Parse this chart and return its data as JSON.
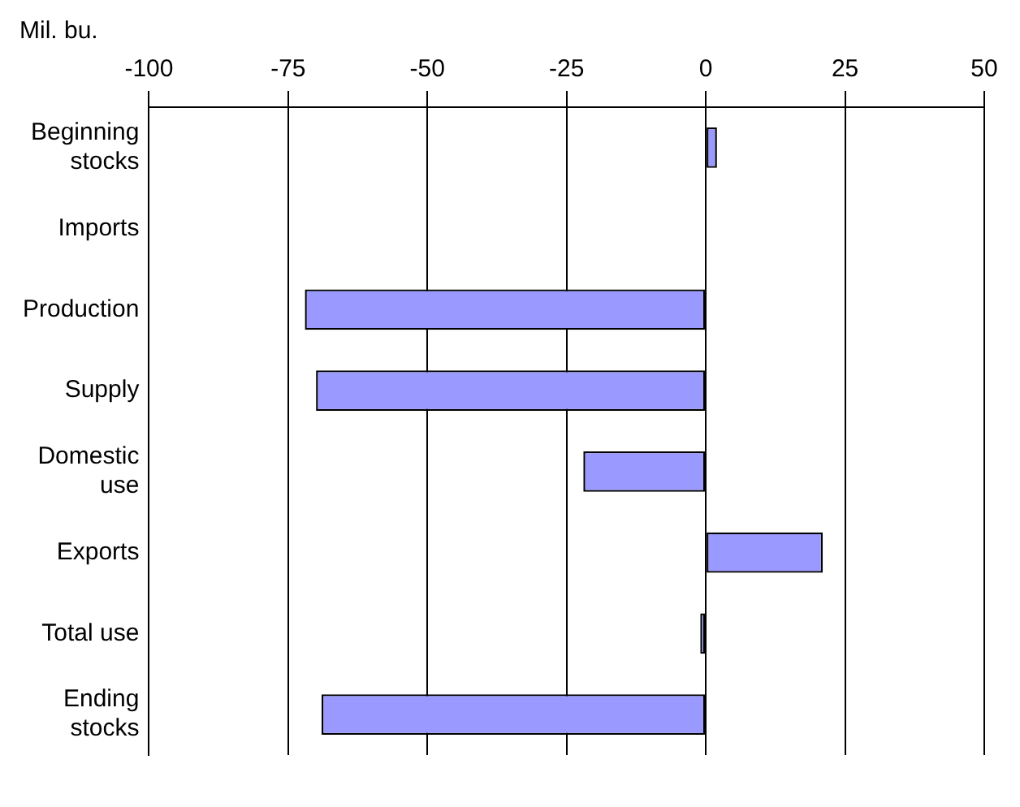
{
  "chart_data": {
    "type": "bar",
    "orientation": "horizontal",
    "xlabel": "Mil. bu.",
    "categories": [
      "Beginning stocks",
      "Imports",
      "Production",
      "Supply",
      "Domestic use",
      "Exports",
      "Total use",
      "Ending stocks"
    ],
    "values": [
      2,
      0,
      -72,
      -70,
      -22,
      21,
      -1,
      -69
    ],
    "color": "#9999ff",
    "xlim": [
      -100,
      50
    ],
    "xticks": [
      -100,
      -75,
      -50,
      -25,
      0,
      25,
      50
    ],
    "grid": "x",
    "legend": false
  }
}
